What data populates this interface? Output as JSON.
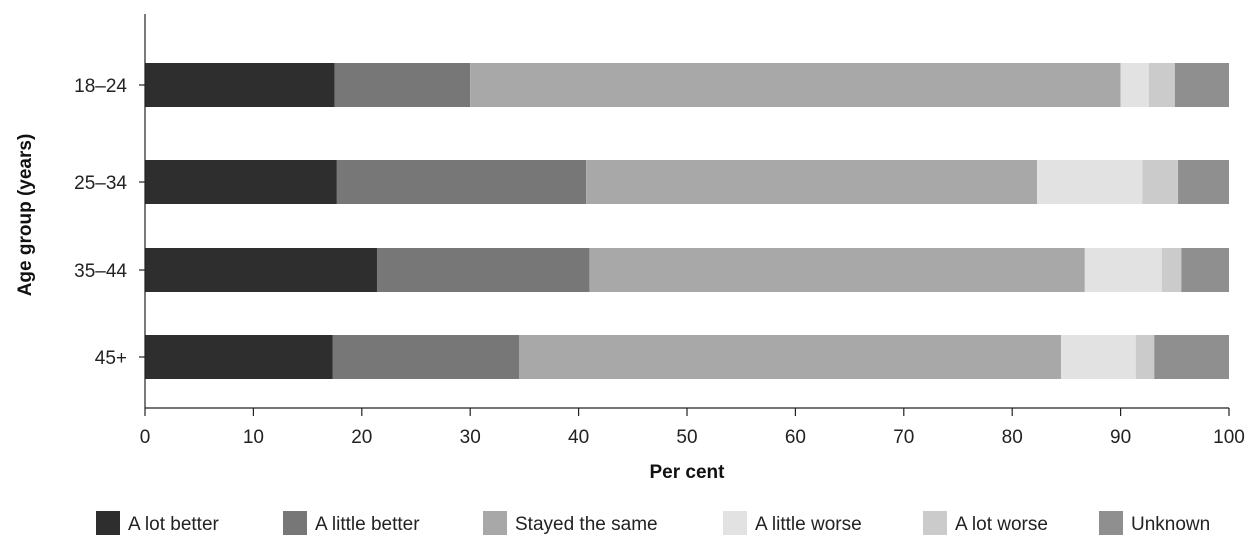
{
  "chart_data": {
    "type": "bar",
    "orientation": "horizontal",
    "stacked": true,
    "categories": [
      "18–24",
      "25–34",
      "35–44",
      "45+"
    ],
    "series": [
      {
        "name": "A lot better",
        "color": "#2e2e2e",
        "values": [
          17.5,
          17.7,
          21.4,
          17.3
        ]
      },
      {
        "name": "A little better",
        "color": "#777777",
        "values": [
          12.5,
          23.0,
          19.6,
          17.2
        ]
      },
      {
        "name": "Stayed the same",
        "color": "#a8a8a8",
        "values": [
          60.0,
          41.6,
          45.7,
          50.0
        ]
      },
      {
        "name": "A little worse",
        "color": "#e2e2e2",
        "values": [
          2.6,
          9.7,
          7.1,
          6.9
        ]
      },
      {
        "name": "A lot worse",
        "color": "#cbcbcb",
        "values": [
          2.4,
          3.3,
          1.8,
          1.7
        ]
      },
      {
        "name": "Unknown",
        "color": "#8f8f8f",
        "values": [
          5.0,
          4.7,
          4.4,
          6.9
        ]
      }
    ],
    "xlabel": "Per cent",
    "ylabel": "Age group (years)",
    "xlim": [
      0,
      100
    ],
    "xticks": [
      "0",
      "10",
      "20",
      "30",
      "40",
      "50",
      "60",
      "70",
      "80",
      "90",
      "100"
    ],
    "grid": false,
    "legend_position": "bottom"
  }
}
